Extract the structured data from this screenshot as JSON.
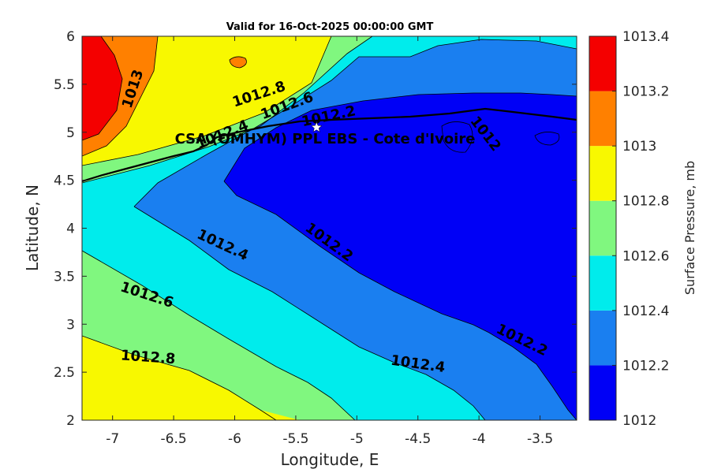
{
  "chart_data": {
    "type": "contour",
    "title": "Valid for 16-Oct-2025 00:00:00 GMT",
    "xlabel": "Longitude, E",
    "ylabel": "Latitude, N",
    "xlim": [
      -7.25,
      -3.2
    ],
    "ylim": [
      2,
      6
    ],
    "xticks": [
      -7,
      -6.5,
      -6,
      -5.5,
      -5,
      -4.5,
      -4,
      -3.5
    ],
    "xtick_labels": [
      "-7",
      "-6.5",
      "-6",
      "-5.5",
      "-5",
      "-4.5",
      "-4",
      "-3.5"
    ],
    "yticks": [
      2,
      2.5,
      3,
      3.5,
      4,
      4.5,
      5,
      5.5,
      6
    ],
    "ytick_labels": [
      "2",
      "2.5",
      "3",
      "3.5",
      "4",
      "4.5",
      "5",
      "5.5",
      "6"
    ],
    "colorbar": {
      "label": "Surface Pressure, mb",
      "levels": [
        1012,
        1012.2,
        1012.4,
        1012.6,
        1012.8,
        1013,
        1013.2,
        1013.4
      ],
      "level_labels": [
        "1012",
        "1012.2",
        "1012.4",
        "1012.6",
        "1012.8",
        "1013",
        "1013.2",
        "1013.4"
      ],
      "colors": [
        "#0000f6",
        "#1a7ff0",
        "#00ecec",
        "#80f77f",
        "#f8f800",
        "#ff8000",
        "#f40000",
        "#800000"
      ]
    },
    "station": {
      "name": "CSA (OMHYM) PPL EBS  - Cote d'Ivoire",
      "lon": -5.33,
      "lat": 5.05,
      "marker": "star"
    },
    "contour_labels": [
      {
        "text": "1013",
        "lon": -6.83,
        "lat": 5.45,
        "angle": -72
      },
      {
        "text": "1012.8",
        "lon": -5.8,
        "lat": 5.39,
        "angle": -18
      },
      {
        "text": "1012.6",
        "lon": -5.57,
        "lat": 5.27,
        "angle": -20
      },
      {
        "text": "1012.4",
        "lon": -6.1,
        "lat": 4.97,
        "angle": -22
      },
      {
        "text": "1012.2",
        "lon": -5.23,
        "lat": 5.16,
        "angle": -12
      },
      {
        "text": "1012",
        "lon": -3.95,
        "lat": 4.98,
        "angle": 52
      },
      {
        "text": "1012.4",
        "lon": -6.1,
        "lat": 3.82,
        "angle": 25
      },
      {
        "text": "1012.2",
        "lon": -5.23,
        "lat": 3.85,
        "angle": 36
      },
      {
        "text": "1012.6",
        "lon": -6.72,
        "lat": 3.3,
        "angle": 18
      },
      {
        "text": "1012.8",
        "lon": -6.71,
        "lat": 2.65,
        "angle": 4
      },
      {
        "text": "1012.4",
        "lon": -4.5,
        "lat": 2.58,
        "angle": 8
      },
      {
        "text": "1012.2",
        "lon": -3.65,
        "lat": 2.83,
        "angle": 26
      }
    ]
  }
}
